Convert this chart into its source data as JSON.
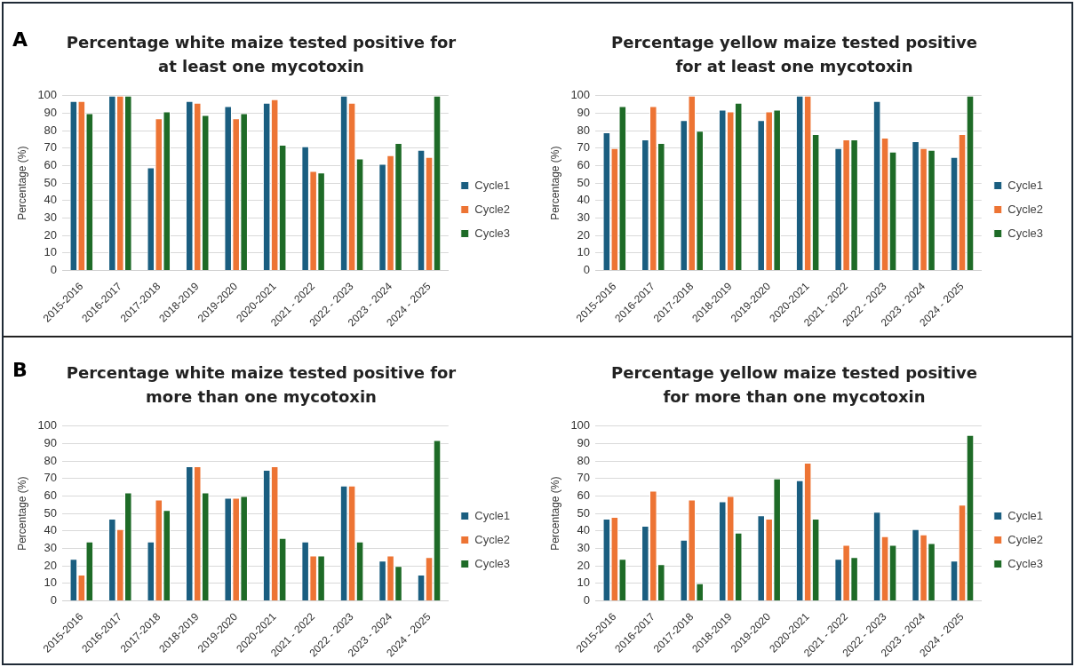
{
  "chart_data": [
    {
      "type": "bar",
      "title": "Percentage white maize tested positive for at least one mycotoxin",
      "ylabel": "Percentage (%)",
      "annotations": [
        "A"
      ],
      "categories": [
        "2015-2016",
        "2016-2017",
        "2017-2018",
        "2018-2019",
        "2019-2020",
        "2020-2021",
        "2021 - 2022",
        "2022 - 2023",
        "2023 - 2024",
        "2024 - 2025"
      ],
      "series": [
        {
          "name": "Cycle1",
          "color": "#1a5e80",
          "values": [
            97,
            100,
            59,
            97,
            94,
            96,
            71,
            100,
            61,
            69
          ]
        },
        {
          "name": "Cycle2",
          "color": "#ed7434",
          "values": [
            97,
            100,
            87,
            96,
            87,
            98,
            57,
            96,
            66,
            65
          ]
        },
        {
          "name": "Cycle3",
          "color": "#1e6b27",
          "values": [
            90,
            100,
            91,
            89,
            90,
            72,
            56,
            64,
            73,
            100
          ]
        }
      ],
      "ylim": [
        0,
        100
      ],
      "yticks": [
        0,
        10,
        20,
        30,
        40,
        50,
        60,
        70,
        80,
        90,
        100
      ],
      "grid": "y",
      "legend": "right"
    },
    {
      "type": "bar",
      "title": "Percentage yellow maize tested positive for at least one mycotoxin",
      "ylabel": "Percentage (%)",
      "categories": [
        "2015-2016",
        "2016-2017",
        "2017-2018",
        "2018-2019",
        "2019-2020",
        "2020-2021",
        "2021 - 2022",
        "2022 - 2023",
        "2023 - 2024",
        "2024 - 2025"
      ],
      "series": [
        {
          "name": "Cycle1",
          "color": "#1a5e80",
          "values": [
            79,
            75,
            86,
            92,
            86,
            100,
            70,
            97,
            74,
            65
          ]
        },
        {
          "name": "Cycle2",
          "color": "#ed7434",
          "values": [
            70,
            94,
            100,
            91,
            91,
            100,
            75,
            76,
            70,
            78
          ]
        },
        {
          "name": "Cycle3",
          "color": "#1e6b27",
          "values": [
            94,
            73,
            80,
            96,
            92,
            78,
            75,
            68,
            69,
            100
          ]
        }
      ],
      "ylim": [
        0,
        100
      ],
      "yticks": [
        0,
        10,
        20,
        30,
        40,
        50,
        60,
        70,
        80,
        90,
        100
      ],
      "grid": "y",
      "legend": "right"
    },
    {
      "type": "bar",
      "title": "Percentage white maize tested positive for more than one mycotoxin",
      "ylabel": "Percentage (%)",
      "annotations": [
        "B"
      ],
      "categories": [
        "2015-2016",
        "2016-2017",
        "2017-2018",
        "2018-2019",
        "2019-2020",
        "2020-2021",
        "2021 - 2022",
        "2022 - 2023",
        "2023 - 2024",
        "2024 - 2025"
      ],
      "series": [
        {
          "name": "Cycle1",
          "color": "#1a5e80",
          "values": [
            24,
            47,
            34,
            77,
            59,
            75,
            34,
            66,
            23,
            15
          ]
        },
        {
          "name": "Cycle2",
          "color": "#ed7434",
          "values": [
            15,
            41,
            58,
            77,
            59,
            77,
            26,
            66,
            26,
            25
          ]
        },
        {
          "name": "Cycle3",
          "color": "#1e6b27",
          "values": [
            34,
            62,
            52,
            62,
            60,
            36,
            26,
            34,
            20,
            92
          ]
        }
      ],
      "ylim": [
        0,
        100
      ],
      "yticks": [
        0,
        10,
        20,
        30,
        40,
        50,
        60,
        70,
        80,
        90,
        100
      ],
      "grid": "y",
      "legend": "right"
    },
    {
      "type": "bar",
      "title": "Percentage yellow maize tested positive for more than one mycotoxin",
      "ylabel": "Percentage (%)",
      "categories": [
        "2015-2016",
        "2016-2017",
        "2017-2018",
        "2018-2019",
        "2019-2020",
        "2020-2021",
        "2021 - 2022",
        "2022 - 2023",
        "2023 - 2024",
        "2024 - 2025"
      ],
      "series": [
        {
          "name": "Cycle1",
          "color": "#1a5e80",
          "values": [
            47,
            43,
            35,
            57,
            49,
            69,
            24,
            51,
            41,
            23
          ]
        },
        {
          "name": "Cycle2",
          "color": "#ed7434",
          "values": [
            48,
            63,
            58,
            60,
            47,
            79,
            32,
            37,
            38,
            55
          ]
        },
        {
          "name": "Cycle3",
          "color": "#1e6b27",
          "values": [
            24,
            21,
            10,
            39,
            70,
            47,
            25,
            32,
            33,
            95
          ]
        }
      ],
      "ylim": [
        0,
        100
      ],
      "yticks": [
        0,
        10,
        20,
        30,
        40,
        50,
        60,
        70,
        80,
        90,
        100
      ],
      "grid": "y",
      "legend": "right"
    }
  ]
}
